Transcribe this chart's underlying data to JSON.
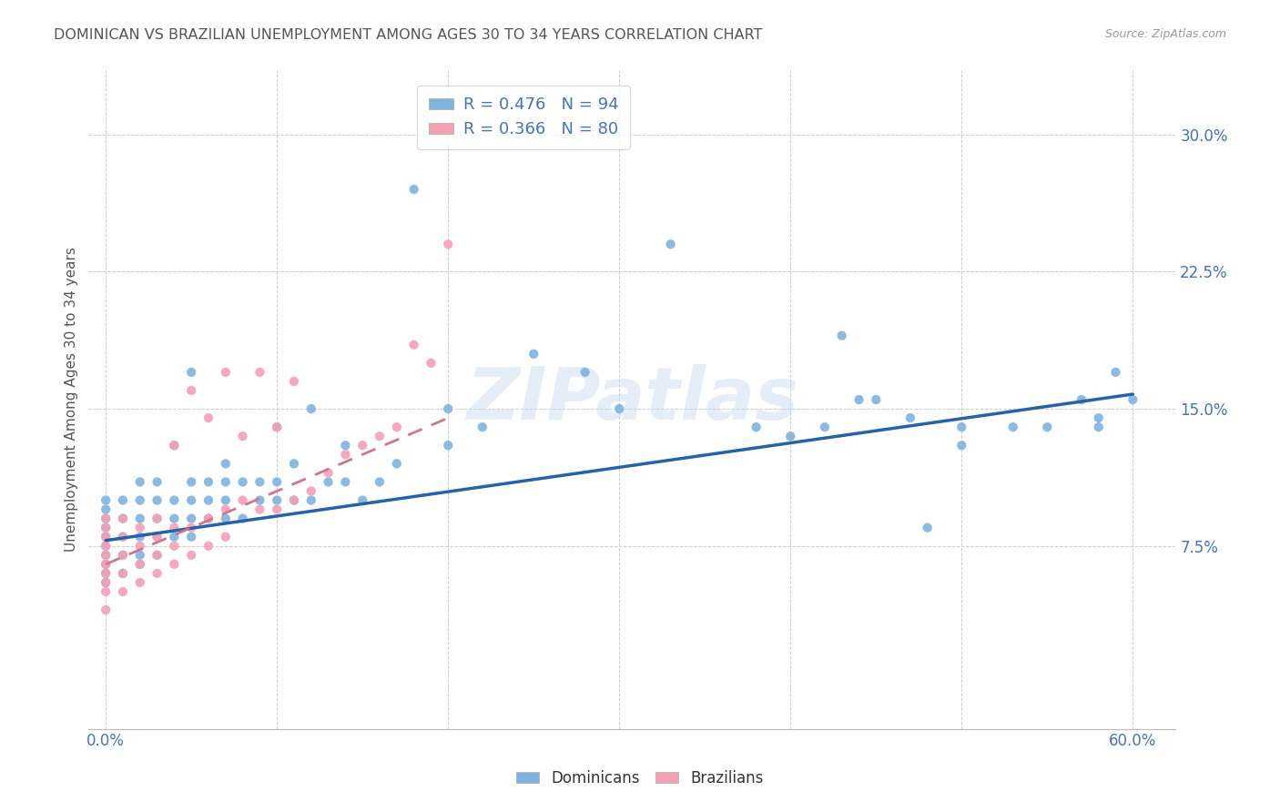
{
  "title": "DOMINICAN VS BRAZILIAN UNEMPLOYMENT AMONG AGES 30 TO 34 YEARS CORRELATION CHART",
  "source": "Source: ZipAtlas.com",
  "ylabel_label": "Unemployment Among Ages 30 to 34 years",
  "xlim": [
    -0.01,
    0.625
  ],
  "ylim": [
    -0.025,
    0.335
  ],
  "dominican_color": "#7eb3e0",
  "brazilian_color": "#f4a0b5",
  "watermark": "ZIPatlas",
  "background_color": "#ffffff",
  "grid_color": "#cccccc",
  "tick_label_color": "#4472c4",
  "dom_scatter_x": [
    0.0,
    0.0,
    0.0,
    0.0,
    0.0,
    0.0,
    0.0,
    0.0,
    0.0,
    0.0,
    0.01,
    0.01,
    0.01,
    0.01,
    0.01,
    0.02,
    0.02,
    0.02,
    0.02,
    0.02,
    0.02,
    0.03,
    0.03,
    0.03,
    0.03,
    0.03,
    0.04,
    0.04,
    0.04,
    0.04,
    0.05,
    0.05,
    0.05,
    0.05,
    0.05,
    0.06,
    0.06,
    0.06,
    0.07,
    0.07,
    0.07,
    0.07,
    0.08,
    0.08,
    0.09,
    0.09,
    0.1,
    0.1,
    0.1,
    0.11,
    0.11,
    0.12,
    0.12,
    0.13,
    0.14,
    0.14,
    0.15,
    0.16,
    0.17,
    0.18,
    0.2,
    0.2,
    0.22,
    0.25,
    0.28,
    0.3,
    0.33,
    0.38,
    0.4,
    0.42,
    0.43,
    0.44,
    0.45,
    0.47,
    0.48,
    0.5,
    0.5,
    0.53,
    0.55,
    0.57,
    0.58,
    0.58,
    0.59,
    0.6
  ],
  "dom_scatter_y": [
    0.055,
    0.06,
    0.065,
    0.07,
    0.075,
    0.08,
    0.085,
    0.09,
    0.095,
    0.1,
    0.06,
    0.07,
    0.08,
    0.09,
    0.1,
    0.065,
    0.07,
    0.08,
    0.09,
    0.1,
    0.11,
    0.07,
    0.08,
    0.09,
    0.1,
    0.11,
    0.08,
    0.09,
    0.1,
    0.13,
    0.08,
    0.09,
    0.1,
    0.11,
    0.17,
    0.09,
    0.1,
    0.11,
    0.09,
    0.1,
    0.11,
    0.12,
    0.09,
    0.11,
    0.1,
    0.11,
    0.1,
    0.11,
    0.14,
    0.1,
    0.12,
    0.1,
    0.15,
    0.11,
    0.11,
    0.13,
    0.1,
    0.11,
    0.12,
    0.27,
    0.13,
    0.15,
    0.14,
    0.18,
    0.17,
    0.15,
    0.24,
    0.14,
    0.135,
    0.14,
    0.19,
    0.155,
    0.155,
    0.145,
    0.085,
    0.13,
    0.14,
    0.14,
    0.14,
    0.155,
    0.14,
    0.145,
    0.17,
    0.155
  ],
  "braz_scatter_x": [
    0.0,
    0.0,
    0.0,
    0.0,
    0.0,
    0.0,
    0.0,
    0.0,
    0.0,
    0.0,
    0.01,
    0.01,
    0.01,
    0.01,
    0.01,
    0.02,
    0.02,
    0.02,
    0.02,
    0.03,
    0.03,
    0.03,
    0.03,
    0.04,
    0.04,
    0.04,
    0.04,
    0.05,
    0.05,
    0.05,
    0.06,
    0.06,
    0.06,
    0.07,
    0.07,
    0.07,
    0.08,
    0.08,
    0.09,
    0.09,
    0.1,
    0.1,
    0.11,
    0.11,
    0.12,
    0.13,
    0.14,
    0.15,
    0.16,
    0.17,
    0.18,
    0.19,
    0.2
  ],
  "braz_scatter_y": [
    0.04,
    0.05,
    0.055,
    0.06,
    0.065,
    0.07,
    0.075,
    0.08,
    0.085,
    0.09,
    0.05,
    0.06,
    0.07,
    0.08,
    0.09,
    0.055,
    0.065,
    0.075,
    0.085,
    0.06,
    0.07,
    0.08,
    0.09,
    0.065,
    0.075,
    0.085,
    0.13,
    0.07,
    0.085,
    0.16,
    0.075,
    0.09,
    0.145,
    0.08,
    0.095,
    0.17,
    0.1,
    0.135,
    0.095,
    0.17,
    0.095,
    0.14,
    0.1,
    0.165,
    0.105,
    0.115,
    0.125,
    0.13,
    0.135,
    0.14,
    0.185,
    0.175,
    0.24
  ],
  "dom_trend_x": [
    0.0,
    0.6
  ],
  "dom_trend_y": [
    0.078,
    0.158
  ],
  "braz_trend_x": [
    0.0,
    0.2
  ],
  "braz_trend_y": [
    0.065,
    0.145
  ],
  "xtick_vals": [
    0.0,
    0.1,
    0.2,
    0.3,
    0.4,
    0.5,
    0.6
  ],
  "xtick_labels_show": [
    "0.0%",
    "",
    "",
    "",
    "",
    "",
    "60.0%"
  ],
  "ytick_vals": [
    0.075,
    0.15,
    0.225,
    0.3
  ],
  "ytick_labels": [
    "7.5%",
    "15.0%",
    "22.5%",
    "30.0%"
  ]
}
